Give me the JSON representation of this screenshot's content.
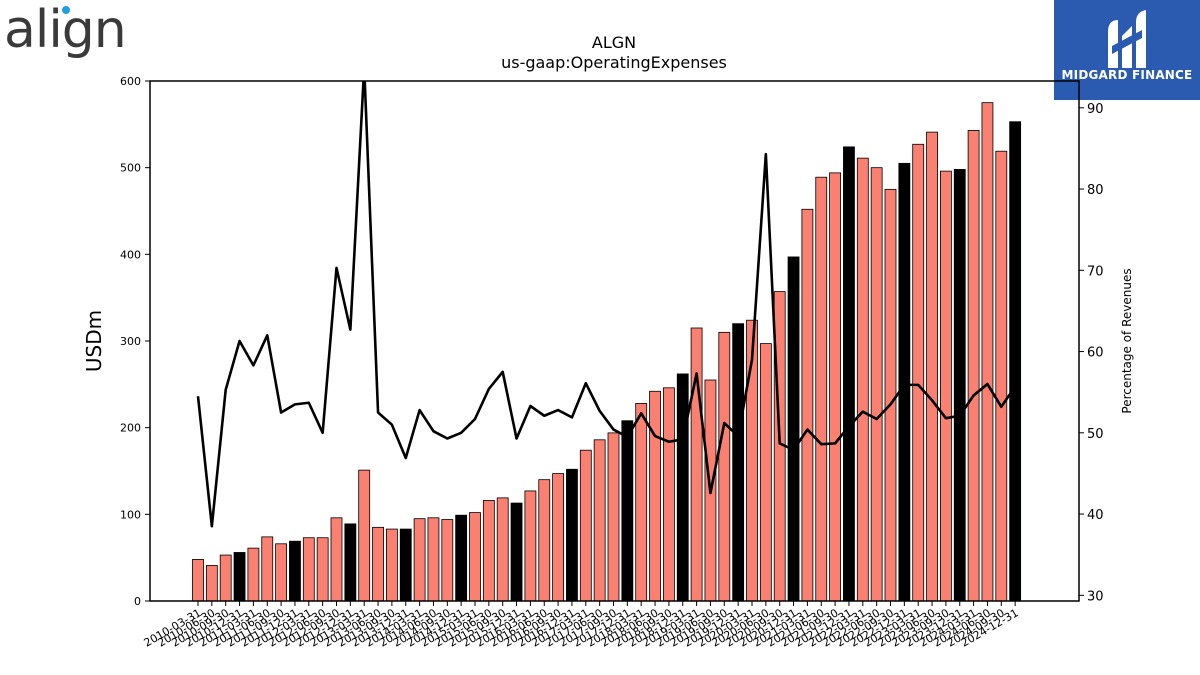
{
  "logos": {
    "left_text": "align",
    "right_text": "MIDGARD FINANCE"
  },
  "colors": {
    "bar_regular": "#fa8072",
    "bar_highlight": "#000000",
    "line": "#000000",
    "right_logo_bg": "#2b5bb0",
    "left_logo_accent": "#1ea0dc"
  },
  "chart_data": {
    "type": "bar",
    "title": "ALGN",
    "subtitle": "us-gaap:OperatingExpenses",
    "ylabel": "USDm",
    "y2label": "Percentage of Revenues",
    "ylim": [
      0,
      600
    ],
    "y2lim": [
      29.3,
      93.3
    ],
    "yticks": [
      0,
      100,
      200,
      300,
      400,
      500,
      600
    ],
    "y2ticks": [
      30,
      40,
      50,
      60,
      70,
      80,
      90
    ],
    "categories": [
      "2010-03-31",
      "2010-06-30",
      "2010-09-30",
      "2010-12-31",
      "2011-03-31",
      "2011-06-30",
      "2011-09-30",
      "2011-12-31",
      "2012-03-31",
      "2012-06-30",
      "2012-09-30",
      "2012-12-31",
      "2013-03-31",
      "2013-06-30",
      "2013-09-30",
      "2013-12-31",
      "2014-03-31",
      "2014-06-30",
      "2014-09-30",
      "2014-12-31",
      "2015-03-31",
      "2015-06-30",
      "2015-09-30",
      "2015-12-31",
      "2016-03-31",
      "2016-06-30",
      "2016-09-30",
      "2016-12-31",
      "2017-03-31",
      "2017-06-30",
      "2017-09-30",
      "2017-12-31",
      "2018-03-31",
      "2018-06-30",
      "2018-09-30",
      "2018-12-31",
      "2019-03-31",
      "2019-06-30",
      "2019-09-30",
      "2019-12-31",
      "2020-03-31",
      "2020-06-30",
      "2020-09-30",
      "2020-12-31",
      "2021-03-31",
      "2021-06-30",
      "2021-09-30",
      "2021-12-31",
      "2022-03-31",
      "2022-06-30",
      "2022-09-30",
      "2022-12-31",
      "2023-03-31",
      "2023-06-30",
      "2023-09-30",
      "2023-12-31",
      "2024-03-31",
      "2024-06-30",
      "2024-09-30",
      "2024-12-31"
    ],
    "xtick_labels": [
      "2010-03-31",
      "2010-06-30",
      "2010-09-30",
      "2010-12-31",
      "2011-03-31",
      "2011-06-30",
      "2011-09-30",
      "2011-12-31",
      "2012-03-31",
      "2012-06-30",
      "2012-09-30",
      "2012-12-31",
      "2013-03-31",
      "2013-06-30",
      "2013-09-30",
      "2013-12-31",
      "2014-03-31",
      "2014-06-30",
      "2014-09-30",
      "2014-12-31",
      "2015-03-31",
      "2015-06-30",
      "2015-09-30",
      "2015-12-31",
      "2016-03-31",
      "2016-06-30",
      "2016-09-30",
      "2016-12-31",
      "2017-03-31",
      "2017-06-30",
      "2017-09-30",
      "2017-12-31",
      "2018-03-31",
      "2018-06-30",
      "2018-09-30",
      "2018-12-31",
      "2019-03-31",
      "2019-06-30",
      "2019-09-30",
      "2019-12-31",
      "2020-03-31",
      "2020-06-30",
      "2020-09-30",
      "2020-12-31",
      "2021-03-31",
      "2021-06-30",
      "2021-09-30",
      "2021-12-31",
      "2022-03-31",
      "2022-06-30",
      "2022-09-30",
      "2022-12-31",
      "2023-03-31",
      "2023-06-30",
      "2023-09-30",
      "2023-12-31",
      "2024-03-31",
      "2024-06-30",
      "2024-09-30",
      "2024-12-31"
    ],
    "series": [
      {
        "type": "bar",
        "axis": "left",
        "values": [
          48,
          41,
          53,
          56,
          61,
          74,
          66,
          69,
          73,
          73,
          96,
          89,
          151,
          85,
          83,
          83,
          95,
          96,
          94,
          99,
          102,
          116,
          119,
          113,
          127,
          140,
          147,
          152,
          174,
          186,
          194,
          208,
          228,
          242,
          246,
          262,
          315,
          255,
          310,
          320,
          324,
          297,
          357,
          397,
          452,
          489,
          494,
          524,
          511,
          500,
          475,
          505,
          527,
          541,
          496,
          498,
          543,
          575,
          519,
          553
        ],
        "highlight": [
          false,
          false,
          false,
          true,
          false,
          false,
          false,
          true,
          false,
          false,
          false,
          true,
          false,
          false,
          false,
          true,
          false,
          false,
          false,
          true,
          false,
          false,
          false,
          true,
          false,
          false,
          false,
          true,
          false,
          false,
          false,
          true,
          false,
          false,
          false,
          true,
          false,
          false,
          false,
          true,
          false,
          false,
          false,
          true,
          false,
          false,
          false,
          true,
          false,
          false,
          false,
          true,
          false,
          false,
          false,
          true,
          false,
          false,
          false,
          true
        ]
      },
      {
        "name": "Percentage of Revenues",
        "type": "line",
        "axis": "right",
        "values": [
          54.5,
          38.5,
          55.3,
          61.3,
          58.3,
          62.0,
          52.5,
          53.5,
          53.7,
          50.0,
          70.3,
          62.7,
          95.0,
          52.5,
          51.0,
          46.9,
          52.8,
          50.2,
          49.3,
          50.0,
          51.7,
          55.4,
          57.5,
          49.3,
          53.3,
          52.1,
          52.8,
          51.9,
          56.1,
          52.7,
          50.4,
          49.5,
          52.4,
          49.6,
          48.9,
          49.2,
          57.3,
          42.6,
          51.2,
          49.6,
          59.0,
          84.3,
          48.7,
          47.9,
          50.4,
          48.6,
          48.7,
          50.8,
          52.6,
          51.7,
          53.5,
          55.9,
          55.9,
          54.0,
          51.8,
          52.1,
          54.6,
          56.0,
          53.2,
          55.7
        ]
      }
    ]
  }
}
